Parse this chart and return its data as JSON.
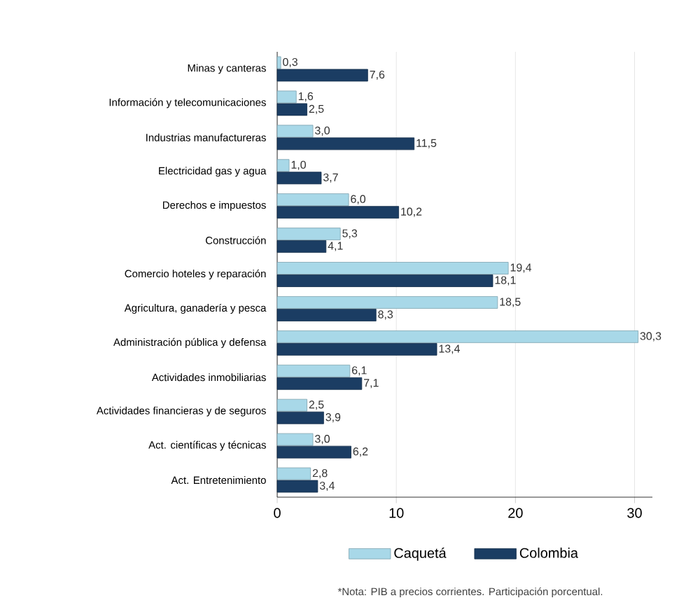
{
  "chart_data": {
    "type": "bar",
    "orientation": "horizontal",
    "categories": [
      "Minas y canteras",
      "Información y telecomunicaciones",
      "Industrias manufactureras",
      "Electricidad gas y agua",
      "Derechos e impuestos",
      "Construcción",
      "Comercio hoteles y reparación",
      "Agricultura, ganadería y pesca",
      "Administración pública y defensa",
      "Actividades inmobiliarias",
      "Actividades financieras y de seguros",
      "Act. científicas y técnicas",
      "Act. Entretenimiento"
    ],
    "series": [
      {
        "name": "Caquetá",
        "color": "#a8d8e8",
        "values": [
          0.3,
          1.6,
          3.0,
          1.0,
          6.0,
          5.3,
          19.4,
          18.5,
          30.3,
          6.1,
          2.5,
          3.0,
          2.8
        ],
        "value_labels": [
          "0,3",
          "1,6",
          "3,0",
          "1,0",
          "6,0",
          "5,3",
          "19,4",
          "18,5",
          "30,3",
          "6,1",
          "2,5",
          "3,0",
          "2,8"
        ]
      },
      {
        "name": "Colombia",
        "color": "#1b3d63",
        "values": [
          7.6,
          2.5,
          11.5,
          3.7,
          10.2,
          4.1,
          18.1,
          8.3,
          13.4,
          7.1,
          3.9,
          6.2,
          3.4
        ],
        "value_labels": [
          "7,6",
          "2,5",
          "11,5",
          "3,7",
          "10,2",
          "4,1",
          "18,1",
          "8,3",
          "13,4",
          "7,1",
          "3,9",
          "6,2",
          "3,4"
        ]
      }
    ],
    "xlim": [
      0,
      31.5
    ],
    "xticks": [
      0,
      10,
      20,
      30
    ],
    "grid": "x",
    "legend": "bottom",
    "annotations": [
      "*Nota: PIB a precios corrientes. Participación porcentual."
    ]
  }
}
